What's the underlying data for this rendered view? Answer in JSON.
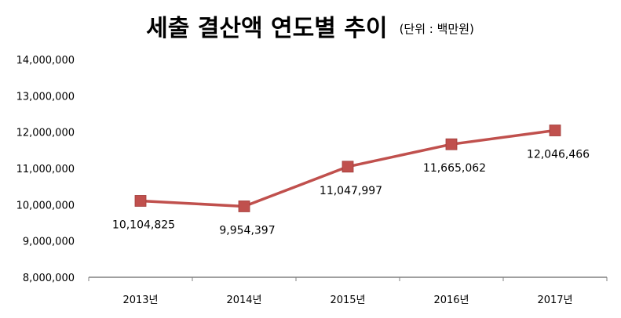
{
  "chart_data": {
    "type": "line",
    "title": "세출 결산액 연도별 추이",
    "subtitle": "(단위 : 백만원)",
    "categories": [
      "2013년",
      "2014년",
      "2015년",
      "2016년",
      "2017년"
    ],
    "series": [
      {
        "values": [
          10104825,
          9954397,
          11047997,
          11665062,
          12046466
        ]
      }
    ],
    "data_labels": [
      "10,104,825",
      "9,954,397",
      "11,047,997",
      "11,665,062",
      "12,046,466"
    ],
    "y_ticks": [
      "8,000,000",
      "9,000,000",
      "10,000,000",
      "11,000,000",
      "12,000,000",
      "13,000,000",
      "14,000,000"
    ],
    "ylim": [
      8000000,
      14000000
    ],
    "y_step": 1000000,
    "grid": false,
    "legend": "none",
    "colors": {
      "line": "#C0504D",
      "marker": "#C0504D",
      "axis": "#808080"
    }
  }
}
